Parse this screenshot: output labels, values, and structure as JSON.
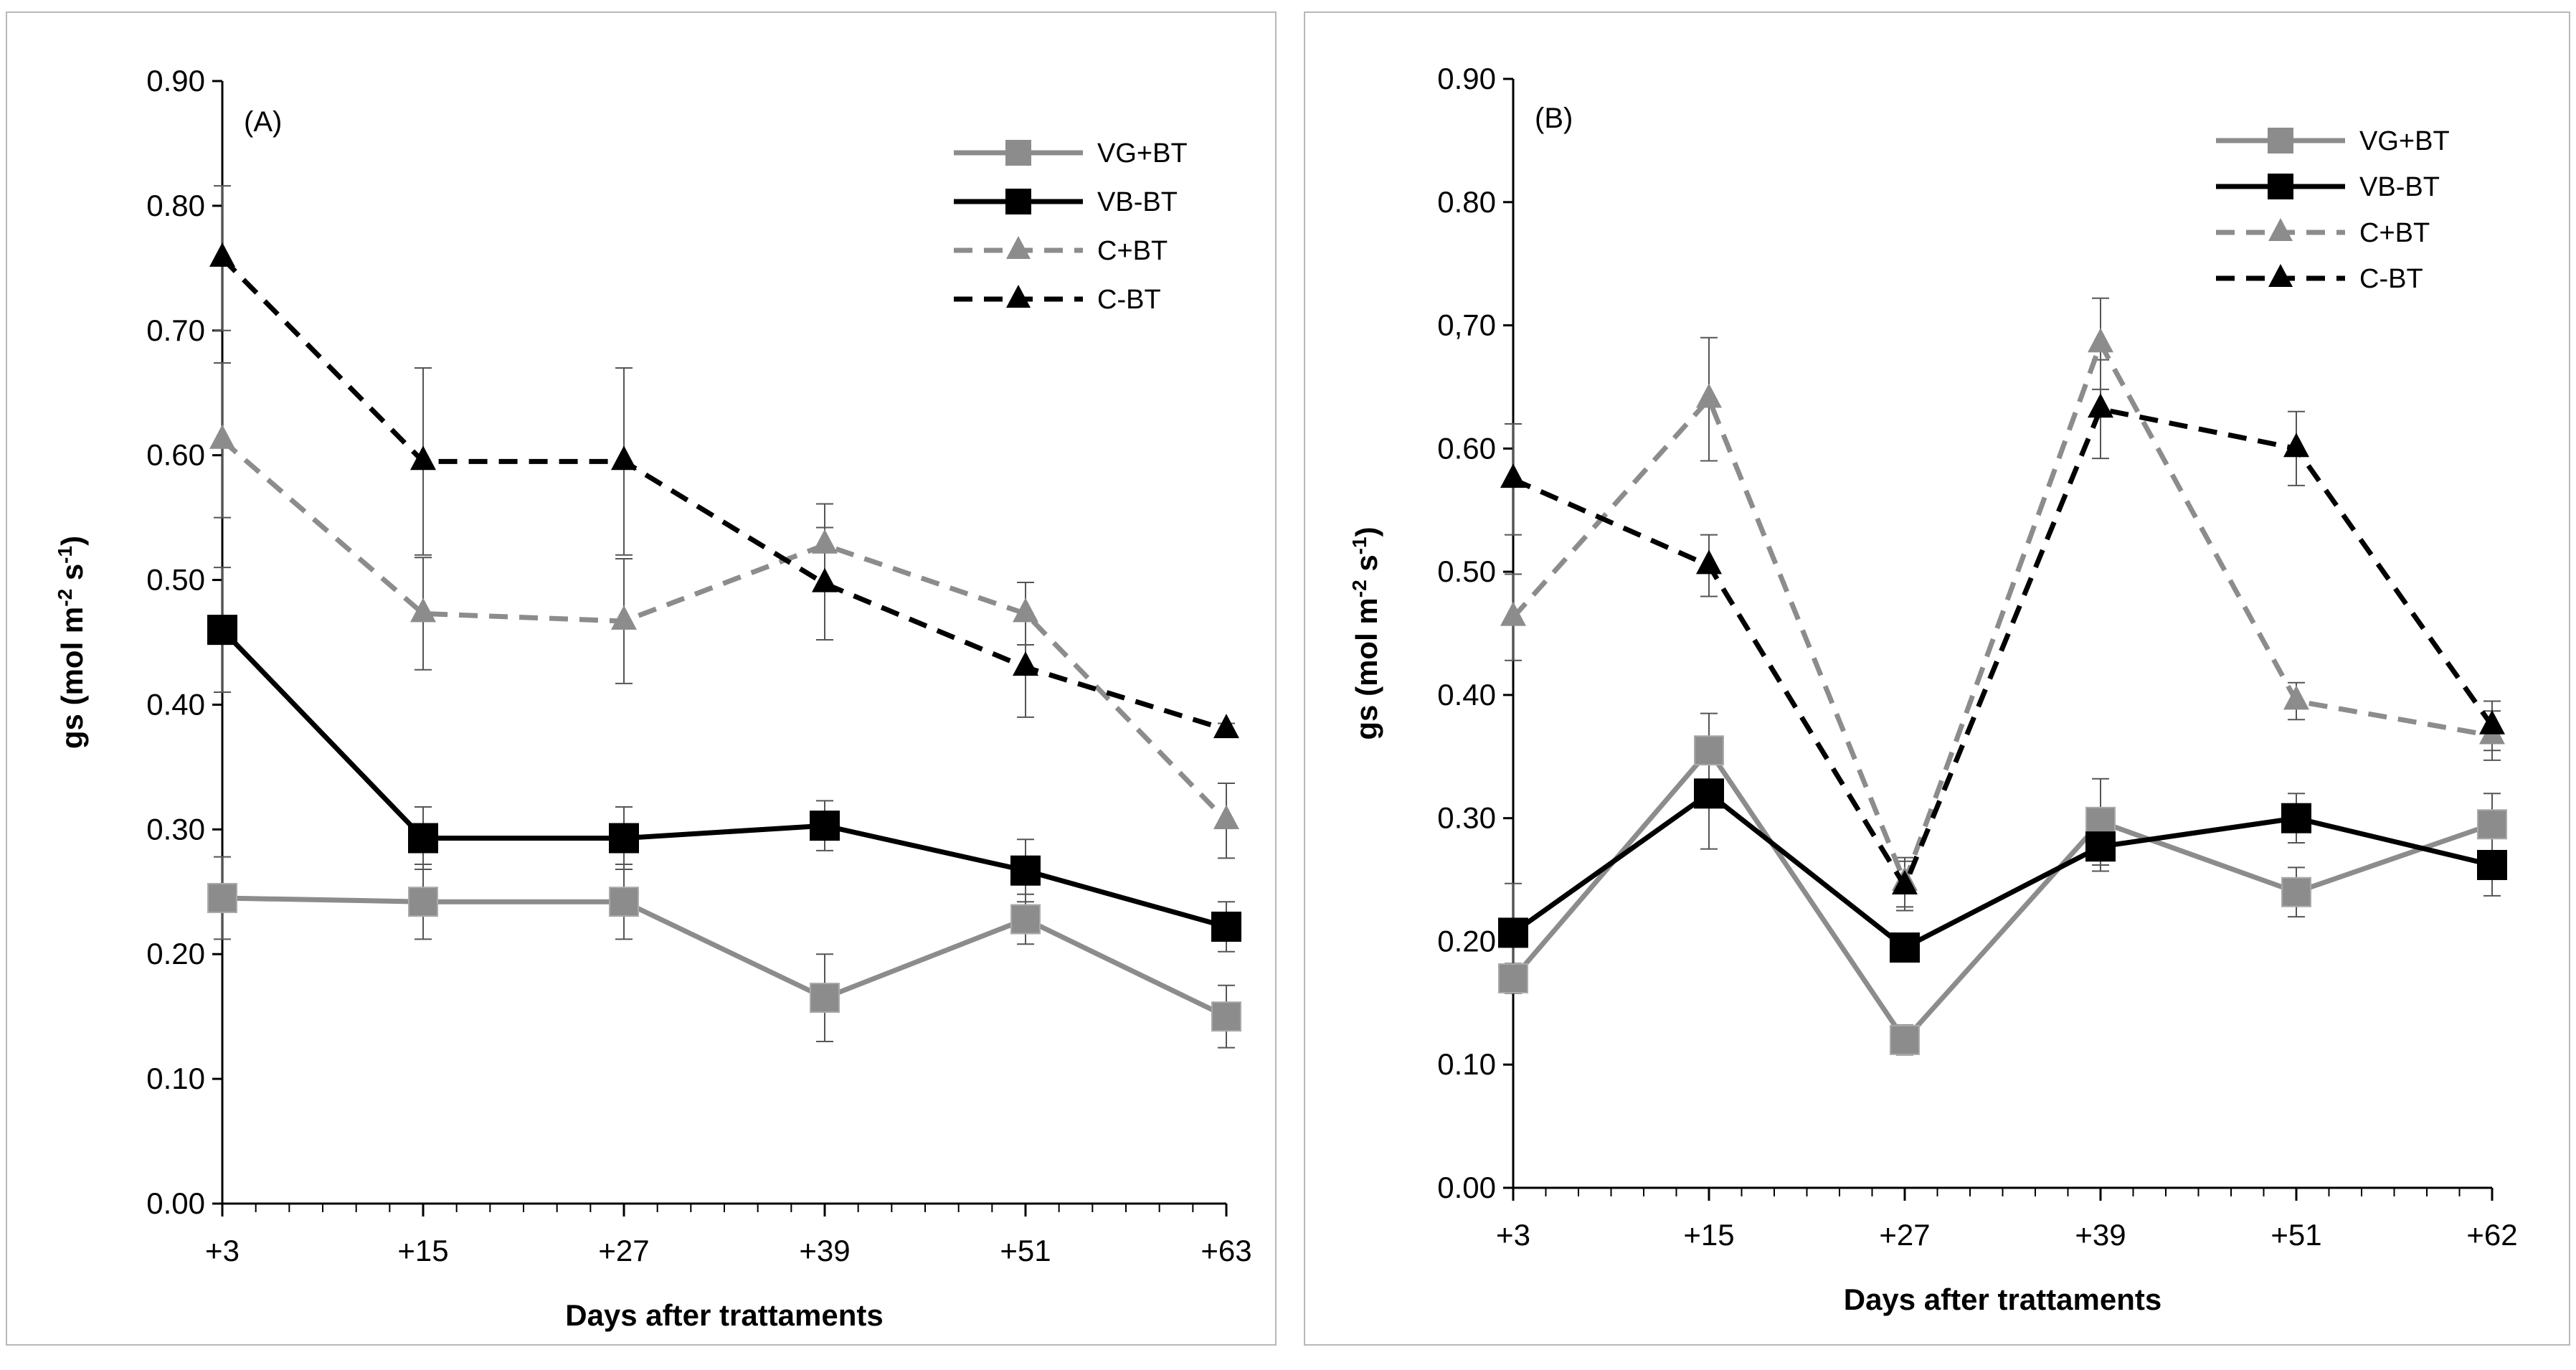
{
  "chart_data": [
    {
      "type": "line",
      "panel_label": "(A)",
      "xlabel": "Days after trattaments",
      "ylabel": "gs (mol m",
      "ylabel_sup1": "-2",
      "ylabel_mid": " s",
      "ylabel_sup2": "-1",
      "ylabel_end": ")",
      "categories": [
        "+3",
        "+15",
        "+27",
        "+39",
        "+51",
        "+63"
      ],
      "ylim": [
        0,
        0.9
      ],
      "yticks": [
        "0.00",
        "0.10",
        "0.20",
        "0.30",
        "0.40",
        "0.50",
        "0.60",
        "0.70",
        "0.80",
        "0.90"
      ],
      "legend_position": "top-right",
      "series": [
        {
          "name": "VG+BT",
          "values": [
            0.245,
            0.242,
            0.242,
            0.165,
            0.228,
            0.15
          ],
          "errors": [
            0.033,
            0.03,
            0.03,
            0.035,
            0.02,
            0.025
          ],
          "color": "#8c8c8c",
          "dash": false,
          "marker": "square"
        },
        {
          "name": "VB-BT",
          "values": [
            0.46,
            0.293,
            0.293,
            0.303,
            0.267,
            0.222
          ],
          "errors": [
            0.05,
            0.025,
            0.025,
            0.02,
            0.025,
            0.02
          ],
          "color": "#000000",
          "dash": false,
          "marker": "square"
        },
        {
          "name": "C+BT",
          "values": [
            0.612,
            0.473,
            0.467,
            0.528,
            0.473,
            0.307
          ],
          "errors": [
            0.062,
            0.045,
            0.05,
            0.033,
            0.025,
            0.03
          ],
          "color": "#8c8c8c",
          "dash": true,
          "marker": "triangle"
        },
        {
          "name": "C-BT",
          "values": [
            0.758,
            0.595,
            0.595,
            0.497,
            0.43,
            0.38
          ],
          "errors": [
            0.058,
            0.075,
            0.075,
            0.045,
            0.04,
            0.005
          ],
          "color": "#000000",
          "dash": true,
          "marker": "triangle"
        }
      ]
    },
    {
      "type": "line",
      "panel_label": "(B)",
      "xlabel": "Days after trattaments",
      "ylabel": "gs (mol m",
      "ylabel_sup1": "-2",
      "ylabel_mid": " s",
      "ylabel_sup2": "-1",
      "ylabel_end": ")",
      "categories": [
        "+3",
        "+15",
        "+27",
        "+39",
        "+51",
        "+62"
      ],
      "ylim": [
        0,
        0.9
      ],
      "yticks": [
        "0.00",
        "0.10",
        "0.20",
        "0.30",
        "0.40",
        "0.50",
        "0.60",
        "0,70",
        "0.80",
        "0.90"
      ],
      "legend_position": "top-right",
      "series": [
        {
          "name": "VG+BT",
          "values": [
            0.17,
            0.355,
            0.12,
            0.297,
            0.24,
            0.295
          ],
          "errors": [
            0.012,
            0.03,
            0.012,
            0.035,
            0.02,
            0.025
          ],
          "color": "#8c8c8c",
          "dash": false,
          "marker": "square"
        },
        {
          "name": "VB-BT",
          "values": [
            0.207,
            0.32,
            0.195,
            0.277,
            0.3,
            0.262
          ],
          "errors": [
            0.04,
            0.045,
            0.01,
            0.02,
            0.02,
            0.025
          ],
          "color": "#000000",
          "dash": false,
          "marker": "square"
        },
        {
          "name": "C+BT",
          "values": [
            0.463,
            0.64,
            0.248,
            0.685,
            0.395,
            0.367
          ],
          "errors": [
            0.035,
            0.05,
            0.02,
            0.037,
            0.015,
            0.02
          ],
          "color": "#8c8c8c",
          "dash": true,
          "marker": "triangle"
        },
        {
          "name": "C-BT",
          "values": [
            0.575,
            0.505,
            0.245,
            0.632,
            0.6,
            0.375
          ],
          "errors": [
            0.045,
            0.025,
            0.02,
            0.04,
            0.03,
            0.02
          ],
          "color": "#000000",
          "dash": true,
          "marker": "triangle"
        }
      ]
    }
  ]
}
